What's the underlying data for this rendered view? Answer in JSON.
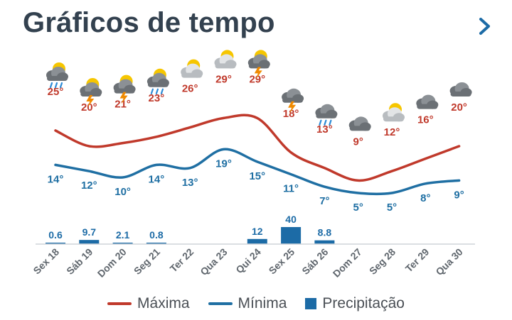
{
  "header": {
    "title": "Gráficos de tempo",
    "next_icon": "chevron-right-icon"
  },
  "colors": {
    "max": "#c0392b",
    "min": "#1f6fa3",
    "precip": "#1c6ba6",
    "label_max": "#c0392b",
    "label_min": "#1f6fa3",
    "axis_text": "#5f666d"
  },
  "legend": {
    "max_label": "Máxima",
    "min_label": "Mínima",
    "precip_label": "Precipitação"
  },
  "chart_data": {
    "type": "line",
    "categories": [
      "Sex 18",
      "Sáb 19",
      "Dom 20",
      "Seg 21",
      "Ter 22",
      "Qua 23",
      "Qui 24",
      "Sex 25",
      "Sáb 26",
      "Dom 27",
      "Seg 28",
      "Ter 29",
      "Qua 30"
    ],
    "icons": [
      "rain-sun-icon",
      "thunderstorm-sun-icon",
      "thunderstorm-sun-icon",
      "rain-sun-icon",
      "partly-cloudy-icon",
      "partly-cloudy-icon",
      "thunderstorm-sun-icon",
      "thunderstorm-icon",
      "rain-icon",
      "cloudy-icon",
      "partly-cloudy-icon",
      "cloudy-icon",
      "cloudy-icon"
    ],
    "series": [
      {
        "name": "Máxima",
        "values": [
          25,
          20,
          21,
          23,
          26,
          29,
          29,
          18,
          13,
          9,
          12,
          16,
          20
        ]
      },
      {
        "name": "Mínima",
        "values": [
          14,
          12,
          10,
          14,
          13,
          19,
          15,
          11,
          7,
          5,
          5,
          8,
          9
        ]
      },
      {
        "name": "Precipitação",
        "values": [
          0.6,
          9.7,
          2.1,
          0.8,
          null,
          null,
          12,
          40,
          8.8,
          null,
          null,
          null,
          null
        ]
      }
    ],
    "temp_labels_max": [
      "25°",
      "20°",
      "21°",
      "23°",
      "26°",
      "29°",
      "29°",
      "18°",
      "13°",
      "9°",
      "12°",
      "16°",
      "20°"
    ],
    "temp_labels_min": [
      "14°",
      "12°",
      "10°",
      "14°",
      "13°",
      "19°",
      "15°",
      "11°",
      "7°",
      "5°",
      "5°",
      "8°",
      "9°"
    ],
    "precip_labels": [
      "0.6",
      "9.7",
      "2.1",
      "0.8",
      "",
      "",
      "12",
      "40",
      "8.8",
      "",
      "",
      "",
      ""
    ],
    "grid": false,
    "legend_position": "bottom"
  }
}
